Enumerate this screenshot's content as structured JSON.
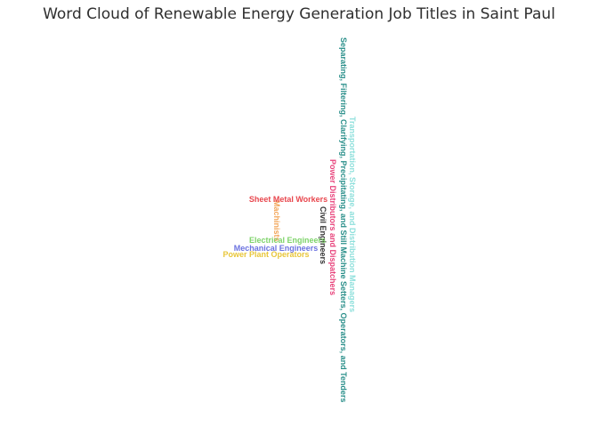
{
  "chart_data": {
    "type": "wordcloud",
    "title": "Word Cloud of Renewable Energy Generation Job Titles in Saint Paul",
    "words": [
      {
        "text": "Separating, Filtering, Clarifying, Precipitating, and Still Machine Setters, Operators, and Tenders",
        "orientation": "vertical",
        "color": "#2a8f8a"
      },
      {
        "text": "Transportation, Storage, and Distribution Managers",
        "orientation": "vertical",
        "color": "#8fe0dc"
      },
      {
        "text": "Power Distributors and Dispatchers",
        "orientation": "vertical",
        "color": "#e8437b"
      },
      {
        "text": "Civil Engineers",
        "orientation": "vertical",
        "color": "#333333"
      },
      {
        "text": "Machinists",
        "orientation": "vertical",
        "color": "#f2a65a"
      },
      {
        "text": "Sheet Metal Workers",
        "orientation": "horizontal",
        "color": "#e8474e"
      },
      {
        "text": "Electrical Engineers",
        "orientation": "horizontal",
        "color": "#7ed36a"
      },
      {
        "text": "Mechanical Engineers",
        "orientation": "horizontal",
        "color": "#6b72e0"
      },
      {
        "text": "Power Plant Operators",
        "orientation": "horizontal",
        "color": "#e8c63a"
      }
    ]
  }
}
